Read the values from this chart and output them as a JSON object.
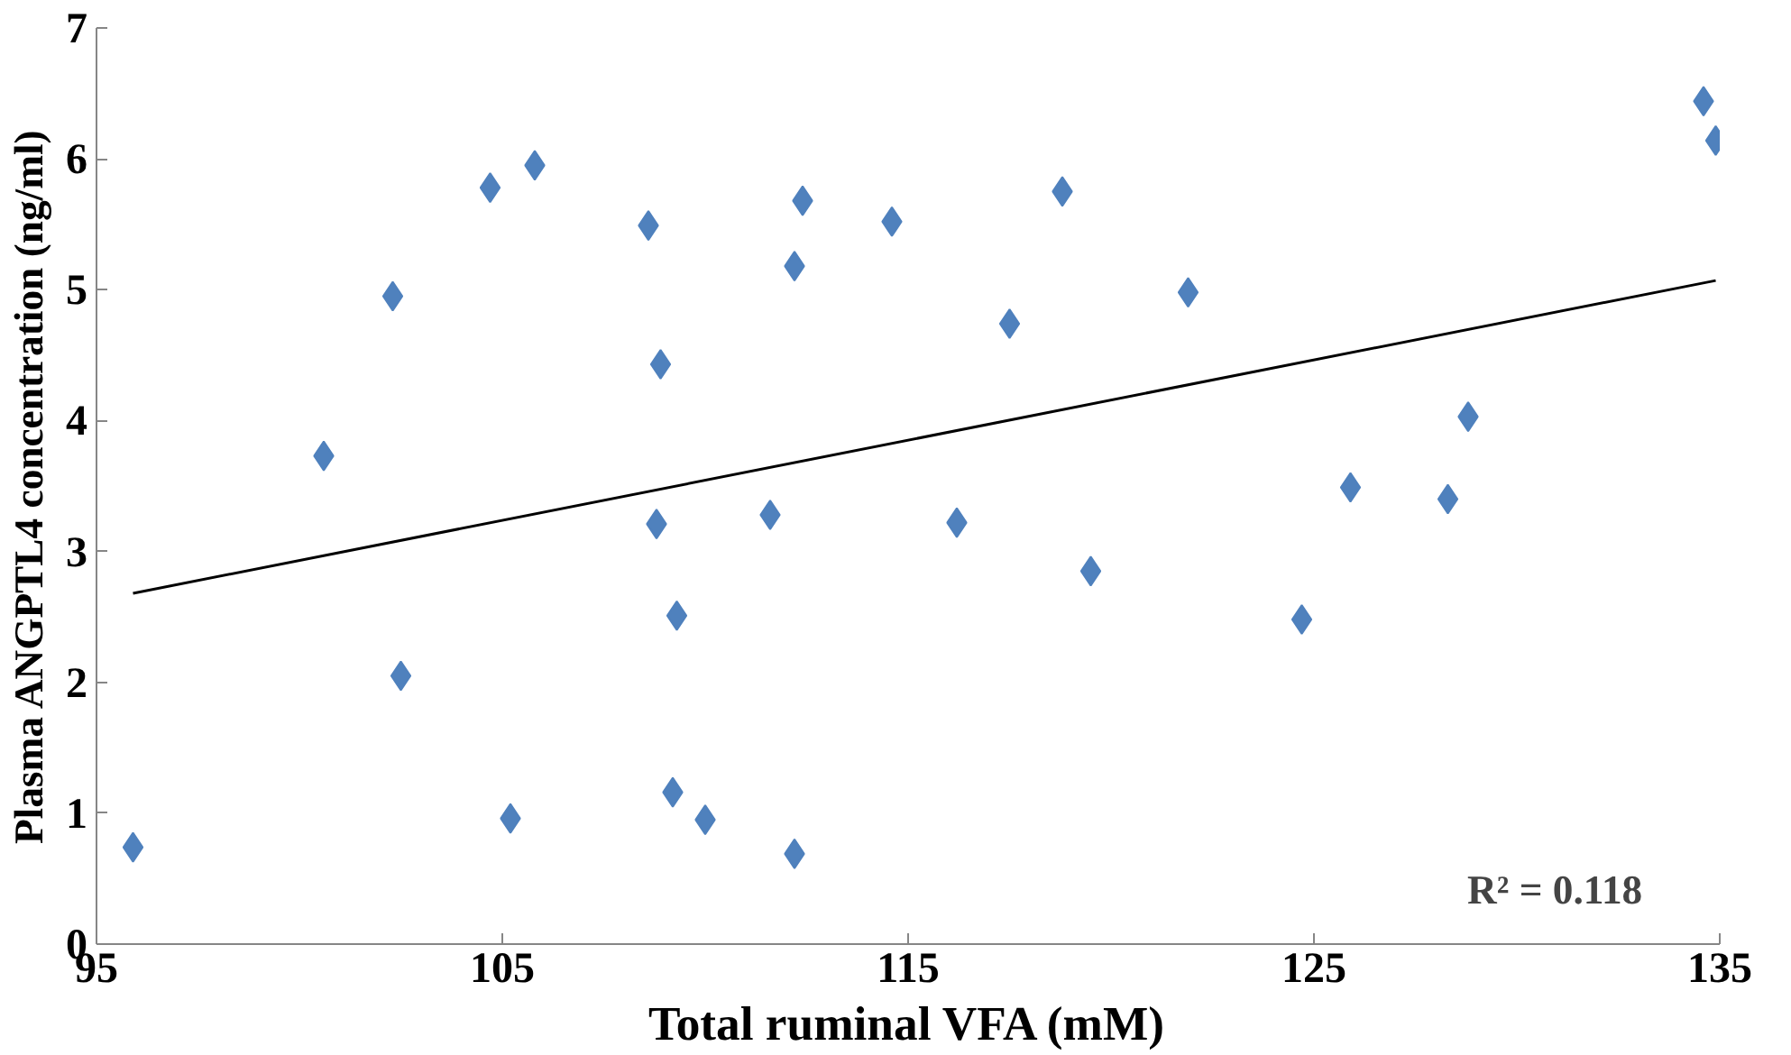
{
  "chart_data": {
    "type": "scatter",
    "xlabel": "Total ruminal VFA (mM)",
    "ylabel": "Plasma ANGPTL4 concentration (ng/ml)",
    "xlim": [
      95,
      135
    ],
    "xticks": [
      95,
      105,
      115,
      125,
      135
    ],
    "ylim": [
      0,
      7
    ],
    "yticks": [
      0,
      1,
      2,
      3,
      4,
      5,
      6,
      7
    ],
    "grid": false,
    "marker": "diamond",
    "series": [
      {
        "color": "#4f81bd",
        "x": [
          95.9,
          100.6,
          102.3,
          102.5,
          104.7,
          105.2,
          105.8,
          108.6,
          108.9,
          108.8,
          109.3,
          109.2,
          110.0,
          111.6,
          112.2,
          112.4,
          112.2,
          114.6,
          116.2,
          117.5,
          118.8,
          119.5,
          121.9,
          124.7,
          125.9,
          128.3,
          128.8,
          134.6,
          134.9
        ],
        "values": [
          0.74,
          3.73,
          4.95,
          2.05,
          5.78,
          0.96,
          5.95,
          5.49,
          4.43,
          3.21,
          2.51,
          1.16,
          0.95,
          3.28,
          5.18,
          5.68,
          0.69,
          5.52,
          3.22,
          4.74,
          5.75,
          2.85,
          4.98,
          2.48,
          3.49,
          3.4,
          4.03,
          6.44,
          6.14
        ]
      },
      {
        "type": "line",
        "color": "#000000",
        "x": [
          95.9,
          134.9
        ],
        "values": [
          2.68,
          5.07
        ],
        "marker": "none",
        "line_style": "solid"
      }
    ],
    "annotations": [
      "R² = 0.118"
    ]
  }
}
